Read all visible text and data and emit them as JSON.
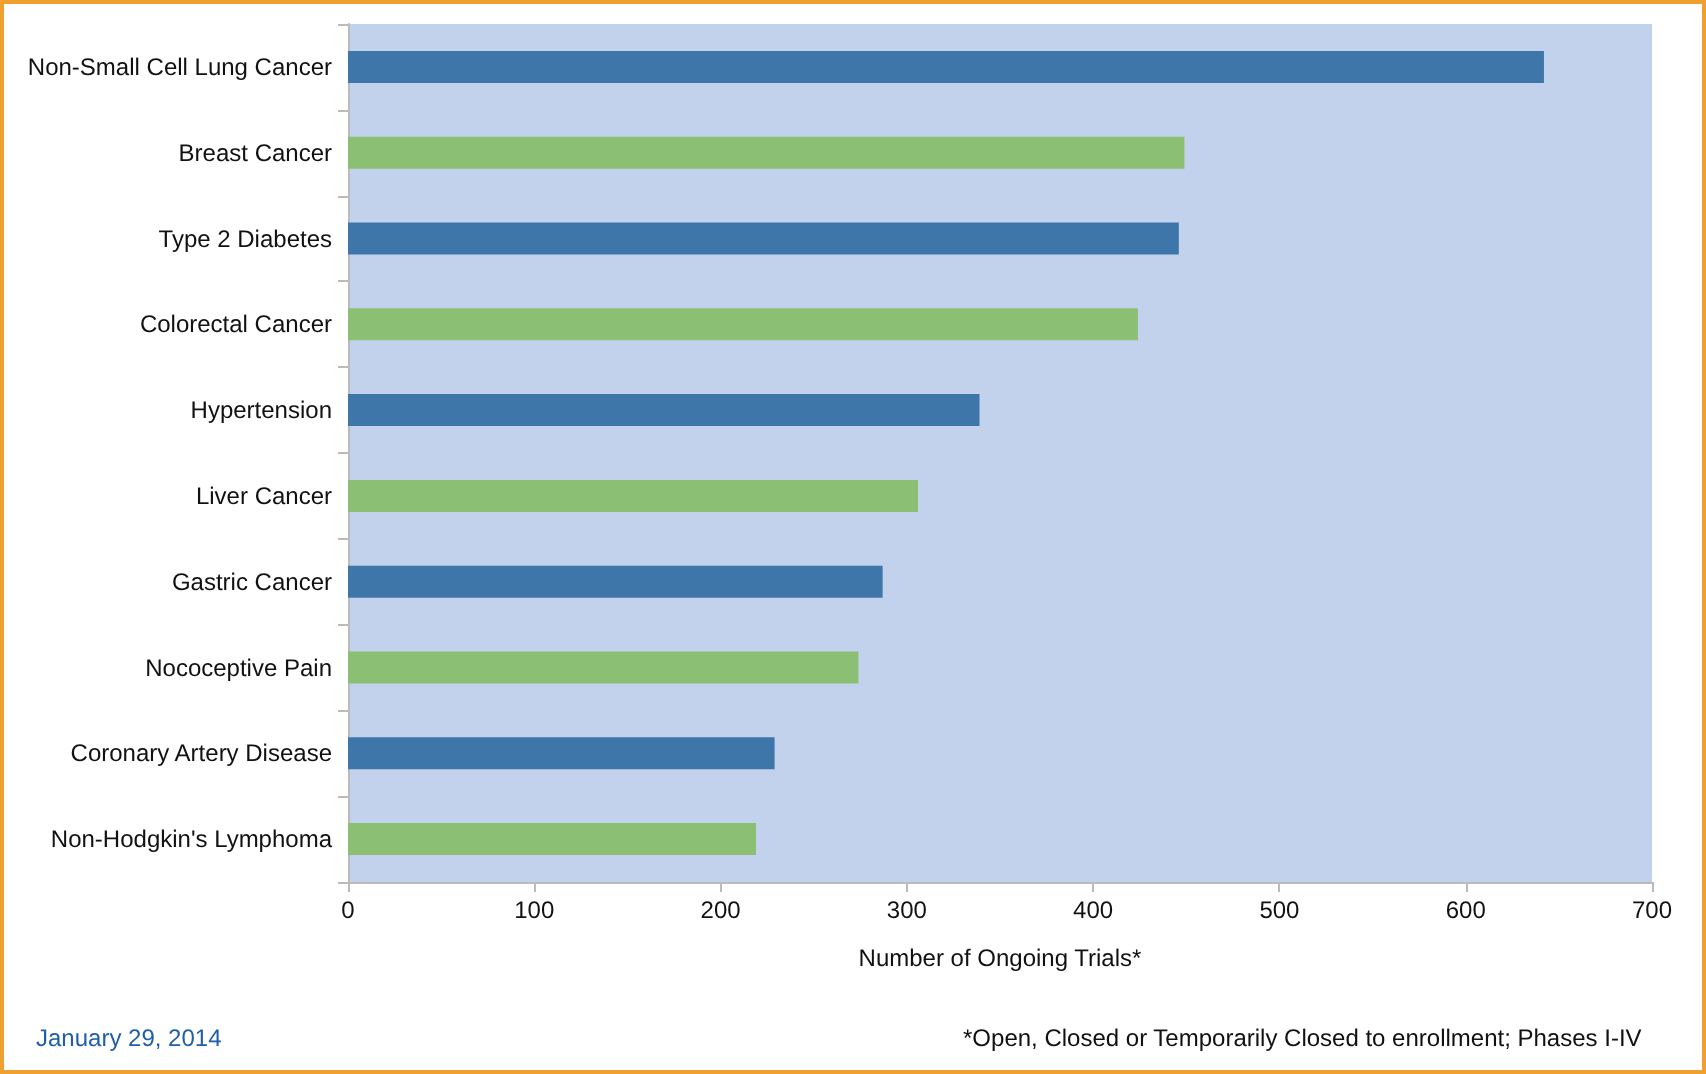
{
  "chart_data": {
    "type": "bar",
    "orientation": "horizontal",
    "xlabel": "Number of Ongoing Trials*",
    "categories": [
      "Non-Small Cell Lung Cancer",
      "Breast Cancer",
      "Type 2 Diabetes",
      "Colorectal Cancer",
      "Hypertension",
      "Liver Cancer",
      "Gastric Cancer",
      "Nococeptive Pain",
      "Coronary Artery Disease",
      "Non-Hodgkin's Lymphoma"
    ],
    "values": [
      642,
      449,
      446,
      424,
      339,
      306,
      287,
      274,
      229,
      219
    ],
    "colors": [
      "#3f76a9",
      "#8bbf73",
      "#3f76a9",
      "#8bbf73",
      "#3f76a9",
      "#8bbf73",
      "#3f76a9",
      "#8bbf73",
      "#3f76a9",
      "#8bbf73"
    ],
    "xlim": [
      0,
      700
    ],
    "xticks": [
      0,
      100,
      200,
      300,
      400,
      500,
      600,
      700
    ],
    "grid": false,
    "annotations": [
      "January 29, 2014",
      "*Open, Closed or Temporarily Closed to enrollment; Phases I-IV"
    ]
  }
}
